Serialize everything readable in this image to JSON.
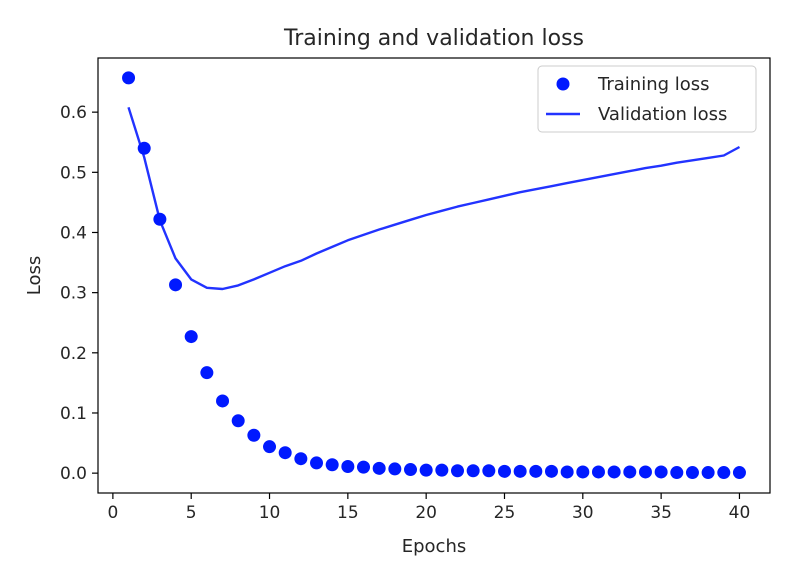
{
  "chart_data": {
    "type": "scatter+line",
    "title": "Training and validation loss",
    "xlabel": "Epochs",
    "ylabel": "Loss",
    "xlim": [
      -0.95,
      41.95
    ],
    "ylim": [
      -0.033,
      0.69
    ],
    "xticks": [
      0,
      5,
      10,
      15,
      20,
      25,
      30,
      35,
      40
    ],
    "yticks": [
      0.0,
      0.1,
      0.2,
      0.3,
      0.4,
      0.5,
      0.6
    ],
    "ytick_labels": [
      "0.0",
      "0.1",
      "0.2",
      "0.3",
      "0.4",
      "0.5",
      "0.6"
    ],
    "grid": false,
    "legend_position": "top-right",
    "series": [
      {
        "name": "Training loss",
        "style": "markers",
        "color": "#0019ff",
        "x": [
          1,
          2,
          3,
          4,
          5,
          6,
          7,
          8,
          9,
          10,
          11,
          12,
          13,
          14,
          15,
          16,
          17,
          18,
          19,
          20,
          21,
          22,
          23,
          24,
          25,
          26,
          27,
          28,
          29,
          30,
          31,
          32,
          33,
          34,
          35,
          36,
          37,
          38,
          39,
          40
        ],
        "y": [
          0.657,
          0.54,
          0.422,
          0.313,
          0.227,
          0.167,
          0.12,
          0.087,
          0.063,
          0.044,
          0.034,
          0.024,
          0.017,
          0.014,
          0.011,
          0.01,
          0.008,
          0.007,
          0.006,
          0.005,
          0.005,
          0.004,
          0.004,
          0.004,
          0.003,
          0.003,
          0.003,
          0.003,
          0.002,
          0.002,
          0.002,
          0.002,
          0.002,
          0.002,
          0.002,
          0.001,
          0.001,
          0.001,
          0.001,
          0.001
        ]
      },
      {
        "name": "Validation loss",
        "style": "line",
        "color": "#2233ff",
        "x": [
          1,
          2,
          3,
          4,
          5,
          6,
          7,
          8,
          9,
          10,
          11,
          12,
          13,
          14,
          15,
          16,
          17,
          18,
          19,
          20,
          21,
          22,
          23,
          24,
          25,
          26,
          27,
          28,
          29,
          30,
          31,
          32,
          33,
          34,
          35,
          36,
          37,
          38,
          39,
          40
        ],
        "y": [
          0.608,
          0.525,
          0.42,
          0.357,
          0.322,
          0.308,
          0.306,
          0.312,
          0.322,
          0.333,
          0.344,
          0.353,
          0.365,
          0.376,
          0.387,
          0.396,
          0.405,
          0.413,
          0.421,
          0.429,
          0.436,
          0.443,
          0.449,
          0.455,
          0.461,
          0.467,
          0.472,
          0.477,
          0.482,
          0.487,
          0.492,
          0.497,
          0.502,
          0.507,
          0.511,
          0.516,
          0.52,
          0.524,
          0.528,
          0.542
        ]
      }
    ]
  }
}
